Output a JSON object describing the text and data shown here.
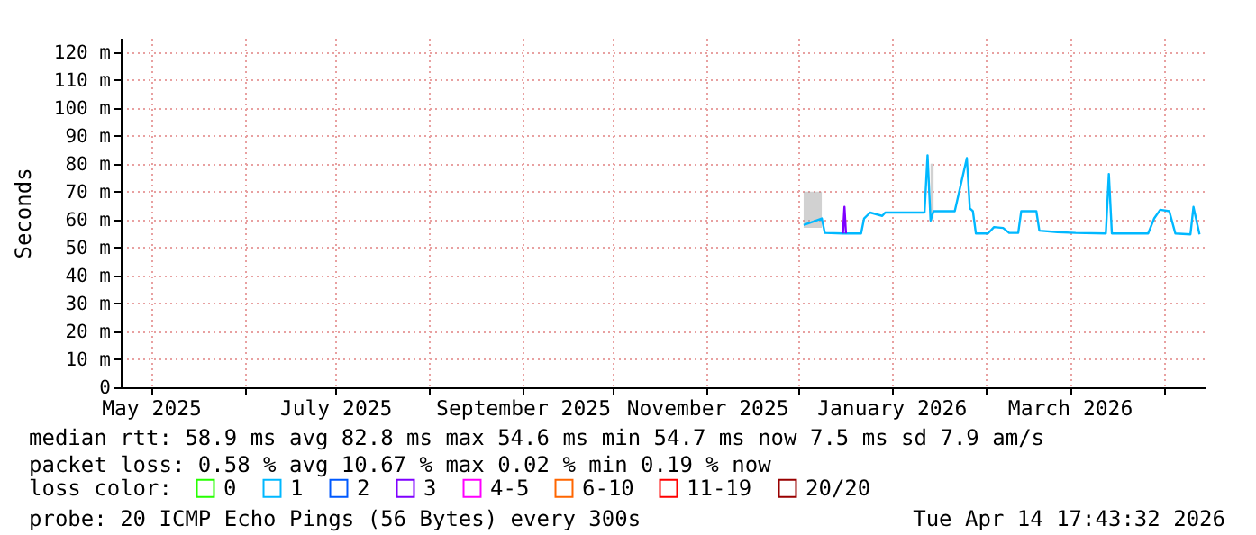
{
  "chart_data": {
    "type": "line",
    "ylabel": "Seconds",
    "legend_title": "loss color:",
    "legend": "bottom",
    "grid": true,
    "marker": "none",
    "line_style": "solid",
    "xlim": [
      "2025-04-21",
      "2026-04-15"
    ],
    "xticks": [
      {
        "value": "2025-05-01",
        "label": "May 2025"
      },
      {
        "value": "2025-06-01",
        "label": null
      },
      {
        "value": "2025-07-01",
        "label": "July 2025"
      },
      {
        "value": "2025-08-01",
        "label": null
      },
      {
        "value": "2025-09-01",
        "label": "September 2025"
      },
      {
        "value": "2025-10-01",
        "label": null
      },
      {
        "value": "2025-11-01",
        "label": "November 2025"
      },
      {
        "value": "2025-12-01",
        "label": null
      },
      {
        "value": "2026-01-01",
        "label": "January 2026"
      },
      {
        "value": "2026-02-01",
        "label": null
      },
      {
        "value": "2026-03-01",
        "label": "March 2026"
      },
      {
        "value": "2026-04-01",
        "label": null
      }
    ],
    "ylim": [
      0,
      125
    ],
    "yticks": [
      0,
      {
        "value": 10,
        "label": "10 m"
      },
      {
        "value": 20,
        "label": "20 m"
      },
      {
        "value": 30,
        "label": "30 m"
      },
      {
        "value": 40,
        "label": "40 m"
      },
      {
        "value": 50,
        "label": "50 m"
      },
      {
        "value": 60,
        "label": "60 m"
      },
      {
        "value": 70,
        "label": "70 m"
      },
      {
        "value": 80,
        "label": "80 m"
      },
      {
        "value": 90,
        "label": "90 m"
      },
      {
        "value": 100,
        "label": "100 m"
      },
      {
        "value": 110,
        "label": "110 m"
      },
      {
        "value": 120,
        "label": "120 m"
      }
    ],
    "series": [
      {
        "name": "0",
        "color": "#26ff00"
      },
      {
        "name": "1",
        "color": "#00b8ff",
        "x": [
          "2025-12-03",
          "2025-12-09",
          "2025-12-10",
          "2025-12-16",
          "2025-12-17",
          "2025-12-22",
          "2025-12-23",
          "2025-12-25",
          "2025-12-29",
          "2025-12-30",
          "2026-01-12",
          "2026-01-13",
          "2026-01-14",
          "2026-01-15",
          "2026-01-22",
          "2026-01-26",
          "2026-01-27",
          "2026-01-28",
          "2026-01-29",
          "2026-02-02",
          "2026-02-04",
          "2026-02-07",
          "2026-02-09",
          "2026-02-12",
          "2026-02-13",
          "2026-02-18",
          "2026-02-19",
          "2026-02-25",
          "2026-03-03",
          "2026-03-13",
          "2026-03-14",
          "2026-03-15",
          "2026-03-27",
          "2026-03-29",
          "2026-03-31",
          "2026-04-03",
          "2026-04-05",
          "2026-04-10",
          "2026-04-11",
          "2026-04-13"
        ],
        "values": [
          58,
          60.4,
          55.2,
          55,
          55,
          55,
          60.4,
          62.5,
          61.3,
          62.5,
          62.5,
          83,
          59.6,
          63,
          63,
          82,
          64,
          63,
          55,
          55,
          57.3,
          57,
          55.2,
          55.2,
          63,
          63,
          56,
          55.5,
          55.2,
          55,
          76.3,
          55,
          55,
          60.4,
          63.5,
          63,
          55,
          54.7,
          64.5,
          54.7
        ],
        "lower": [
          57,
          57,
          null,
          null,
          null,
          null,
          null,
          null,
          null,
          null,
          null,
          null,
          59,
          60,
          null,
          null,
          null,
          null,
          null,
          null,
          null,
          null,
          null,
          null,
          null,
          null,
          null,
          null,
          null,
          null,
          null,
          null,
          null,
          null,
          null,
          null,
          null,
          null,
          null,
          null
        ],
        "upper": [
          70,
          70,
          null,
          null,
          null,
          null,
          null,
          null,
          null,
          null,
          null,
          null,
          80,
          80,
          null,
          null,
          null,
          null,
          null,
          null,
          null,
          null,
          null,
          null,
          null,
          null,
          null,
          null,
          null,
          null,
          null,
          null,
          null,
          null,
          null,
          null,
          null,
          null,
          null,
          null
        ]
      },
      {
        "name": "2",
        "color": "#0059ff"
      },
      {
        "name": "3",
        "color": "#7f00ff",
        "x": [
          "2025-12-16",
          "2025-12-16T12:00",
          "2025-12-17"
        ],
        "values": [
          55,
          64.5,
          55
        ]
      },
      {
        "name": "4-5",
        "color": "#ff00ff"
      },
      {
        "name": "6-10",
        "color": "#ff6600"
      },
      {
        "name": "11-19",
        "color": "#ff0000"
      },
      {
        "name": "20/20",
        "color": "#990000"
      }
    ],
    "annotations": [
      "median rtt:  58.9 ms avg  82.8 ms max  54.6 ms min  54.7 ms now  7.5 ms sd  7.9   am/s",
      "packet loss: 0.58 % avg  10.67 % max  0.02 % min  0.19 % now",
      "probe:       20 ICMP Echo Pings (56 Bytes) every 300s",
      "Tue Apr 14 17:43:32 2026"
    ]
  }
}
